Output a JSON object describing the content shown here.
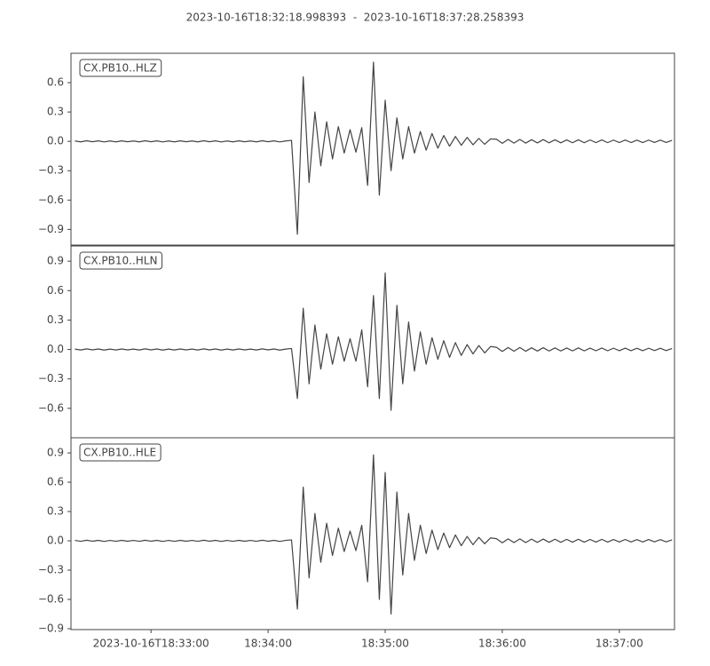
{
  "chart_data": {
    "type": "line",
    "title": "2023-10-16T18:32:18.998393  -  2023-10-16T18:37:28.258393",
    "x": [
      32.35,
      32.4,
      32.45,
      32.5,
      32.55,
      32.6,
      32.65,
      32.7,
      32.75,
      32.8,
      32.85,
      32.9,
      32.95,
      33,
      33.05,
      33.1,
      33.15,
      33.2,
      33.25,
      33.3,
      33.35,
      33.4,
      33.45,
      33.5,
      33.55,
      33.6,
      33.65,
      33.7,
      33.75,
      33.8,
      33.85,
      33.9,
      33.95,
      34,
      34.05,
      34.1,
      34.15,
      34.2,
      34.25,
      34.3,
      34.35,
      34.4,
      34.45,
      34.5,
      34.55,
      34.6,
      34.65,
      34.7,
      34.75,
      34.8,
      34.85,
      34.9,
      34.95,
      35,
      35.05,
      35.1,
      35.15,
      35.2,
      35.25,
      35.3,
      35.35,
      35.4,
      35.45,
      35.5,
      35.55,
      35.6,
      35.65,
      35.7,
      35.75,
      35.8,
      35.85,
      35.9,
      35.95,
      36,
      36.05,
      36.1,
      36.15,
      36.2,
      36.25,
      36.3,
      36.35,
      36.4,
      36.45,
      36.5,
      36.55,
      36.6,
      36.65,
      36.7,
      36.75,
      36.8,
      36.85,
      36.9,
      36.95,
      37,
      37.05,
      37.1,
      37.15,
      37.2,
      37.25,
      37.3,
      37.35,
      37.4,
      37.45
    ],
    "xlim": [
      32.316639,
      37.470973
    ],
    "xticks": [
      {
        "value": 33,
        "label": "2023-10-16T18:33:00"
      },
      {
        "value": 34,
        "label": "18:34:00"
      },
      {
        "value": 35,
        "label": "18:35:00"
      },
      {
        "value": 36,
        "label": "18:36:00"
      },
      {
        "value": 37,
        "label": "18:37:00"
      }
    ],
    "series": [
      {
        "name": "CX.PB10..HLZ",
        "color": "#444444",
        "ylim": [
          -1.06,
          0.9
        ],
        "yticks": [
          {
            "value": -0.9,
            "label": "−0.9"
          },
          {
            "value": -0.6,
            "label": "−0.6"
          },
          {
            "value": -0.3,
            "label": "−0.3"
          },
          {
            "value": 0,
            "label": "0.0"
          },
          0.3,
          0.6
        ],
        "values": [
          0.004,
          -0.005,
          0.006,
          -0.004,
          0.005,
          -0.006,
          0.004,
          -0.005,
          0.005,
          -0.004,
          0.004,
          -0.005,
          0.006,
          -0.004,
          0.005,
          -0.006,
          0.004,
          -0.005,
          0.005,
          -0.004,
          0.004,
          -0.005,
          0.006,
          -0.004,
          0.005,
          -0.006,
          0.004,
          -0.005,
          0.005,
          -0.004,
          0.004,
          -0.005,
          0.006,
          -0.004,
          0.005,
          -0.006,
          0.004,
          0.01,
          -0.95,
          0.66,
          -0.42,
          0.3,
          -0.25,
          0.2,
          -0.18,
          0.15,
          -0.12,
          0.12,
          -0.11,
          0.14,
          -0.45,
          0.81,
          -0.55,
          0.42,
          -0.3,
          0.24,
          -0.18,
          0.15,
          -0.12,
          0.1,
          -0.09,
          0.08,
          -0.07,
          0.06,
          -0.05,
          0.05,
          -0.04,
          0.04,
          -0.035,
          0.03,
          -0.03,
          0.025,
          0.022,
          -0.02,
          0.02,
          -0.018,
          0.02,
          -0.018,
          0.017,
          -0.016,
          0.018,
          -0.015,
          0.016,
          -0.015,
          0.015,
          -0.014,
          0.016,
          -0.014,
          0.014,
          -0.013,
          0.015,
          -0.013,
          0.013,
          -0.012,
          0.014,
          -0.012,
          0.012,
          -0.012,
          0.013,
          -0.011,
          0.012,
          -0.011,
          0.01
        ]
      },
      {
        "name": "CX.PB10..HLN",
        "color": "#444444",
        "ylim": [
          -0.9,
          1.055
        ],
        "yticks": [
          {
            "value": -0.6,
            "label": "−0.6"
          },
          {
            "value": -0.3,
            "label": "−0.3"
          },
          {
            "value": 0,
            "label": "0.0"
          },
          0.3,
          0.6,
          0.9
        ],
        "values": [
          0.004,
          -0.005,
          0.006,
          -0.004,
          0.005,
          -0.006,
          0.004,
          -0.005,
          0.005,
          -0.004,
          0.004,
          -0.005,
          0.006,
          -0.004,
          0.005,
          -0.006,
          0.004,
          -0.005,
          0.005,
          -0.004,
          0.004,
          -0.005,
          0.006,
          -0.004,
          0.005,
          -0.006,
          0.004,
          -0.005,
          0.005,
          -0.004,
          0.004,
          -0.005,
          0.006,
          -0.004,
          0.005,
          -0.006,
          0.004,
          0.01,
          -0.5,
          0.42,
          -0.35,
          0.25,
          -0.2,
          0.16,
          -0.15,
          0.13,
          -0.12,
          0.11,
          -0.12,
          0.2,
          -0.38,
          0.55,
          -0.5,
          0.78,
          -0.62,
          0.45,
          -0.35,
          0.28,
          -0.22,
          0.18,
          -0.15,
          0.12,
          -0.1,
          0.09,
          -0.08,
          0.07,
          -0.06,
          0.05,
          -0.045,
          0.04,
          -0.035,
          0.03,
          0.022,
          -0.02,
          0.02,
          -0.018,
          0.02,
          -0.018,
          0.017,
          -0.016,
          0.018,
          -0.015,
          0.016,
          -0.015,
          0.015,
          -0.014,
          0.016,
          -0.014,
          0.014,
          -0.013,
          0.015,
          -0.013,
          0.013,
          -0.012,
          0.014,
          -0.012,
          0.012,
          -0.012,
          0.013,
          -0.011,
          0.012,
          -0.011,
          0.01
        ]
      },
      {
        "name": "CX.PB10..HLE",
        "color": "#444444",
        "ylim": [
          -0.909,
          1.055
        ],
        "yticks": [
          {
            "value": -0.9,
            "label": "−0.9"
          },
          {
            "value": -0.6,
            "label": "−0.6"
          },
          {
            "value": -0.3,
            "label": "−0.3"
          },
          {
            "value": 0,
            "label": "0.0"
          },
          0.3,
          0.6,
          0.9
        ],
        "values": [
          0.004,
          -0.005,
          0.006,
          -0.004,
          0.005,
          -0.006,
          0.004,
          -0.005,
          0.005,
          -0.004,
          0.004,
          -0.005,
          0.006,
          -0.004,
          0.005,
          -0.006,
          0.004,
          -0.005,
          0.005,
          -0.004,
          0.004,
          -0.005,
          0.006,
          -0.004,
          0.005,
          -0.006,
          0.004,
          -0.005,
          0.005,
          -0.004,
          0.004,
          -0.005,
          0.006,
          -0.004,
          0.005,
          -0.006,
          0.004,
          0.01,
          -0.7,
          0.55,
          -0.38,
          0.28,
          -0.22,
          0.18,
          -0.15,
          0.13,
          -0.11,
          0.1,
          -0.1,
          0.16,
          -0.42,
          0.88,
          -0.6,
          0.7,
          -0.75,
          0.5,
          -0.35,
          0.28,
          -0.2,
          0.16,
          -0.13,
          0.11,
          -0.09,
          0.08,
          -0.07,
          0.06,
          -0.05,
          0.045,
          -0.04,
          0.035,
          -0.03,
          0.03,
          0.022,
          -0.02,
          0.02,
          -0.018,
          0.02,
          -0.018,
          0.017,
          -0.016,
          0.018,
          -0.015,
          0.016,
          -0.015,
          0.015,
          -0.014,
          0.016,
          -0.014,
          0.014,
          -0.013,
          0.015,
          -0.013,
          0.013,
          -0.012,
          0.014,
          -0.012,
          0.012,
          -0.012,
          0.013,
          -0.011,
          0.012,
          -0.011,
          0.01
        ]
      }
    ]
  }
}
